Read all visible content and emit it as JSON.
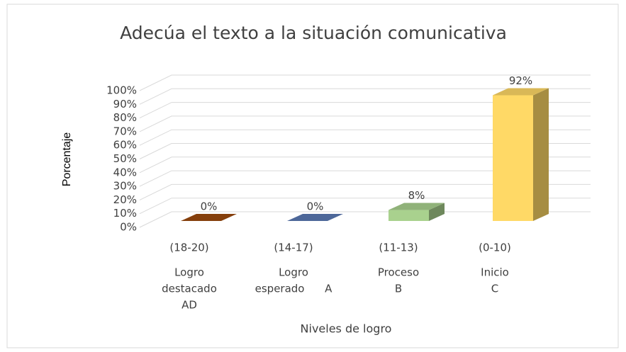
{
  "chart_data": {
    "type": "bar3d",
    "title": "Adecúa el texto a la situación comunicativa",
    "y_label": "Porcentaje",
    "x_label": "Niveles de logro",
    "categories": [
      [
        "(18-20)",
        "Logro",
        "destacado",
        "AD"
      ],
      [
        "(14-17)",
        "Logro",
        "esperado      A"
      ],
      [
        "(11-13)",
        "Proceso",
        "B"
      ],
      [
        "(0-10)",
        "Inicio",
        "C"
      ]
    ],
    "values": [
      0,
      0,
      8,
      92
    ],
    "value_labels": [
      "0%",
      "0%",
      "8%",
      "92%"
    ],
    "colors": [
      "#9c4a0e",
      "#5b79b4",
      "#a9d18e",
      "#ffd966"
    ],
    "ylim": [
      0,
      100
    ],
    "yticks": [
      {
        "value": 0,
        "label": "0%"
      },
      {
        "value": 10,
        "label": "10%"
      },
      {
        "value": 20,
        "label": "20%"
      },
      {
        "value": 30,
        "label": "30%"
      },
      {
        "value": 40,
        "label": "40%"
      },
      {
        "value": 50,
        "label": "50%"
      },
      {
        "value": 60,
        "label": "60%"
      },
      {
        "value": 70,
        "label": "70%"
      },
      {
        "value": 80,
        "label": "80%"
      },
      {
        "value": 90,
        "label": "90%"
      },
      {
        "value": 100,
        "label": "100%"
      }
    ],
    "grid": true
  }
}
